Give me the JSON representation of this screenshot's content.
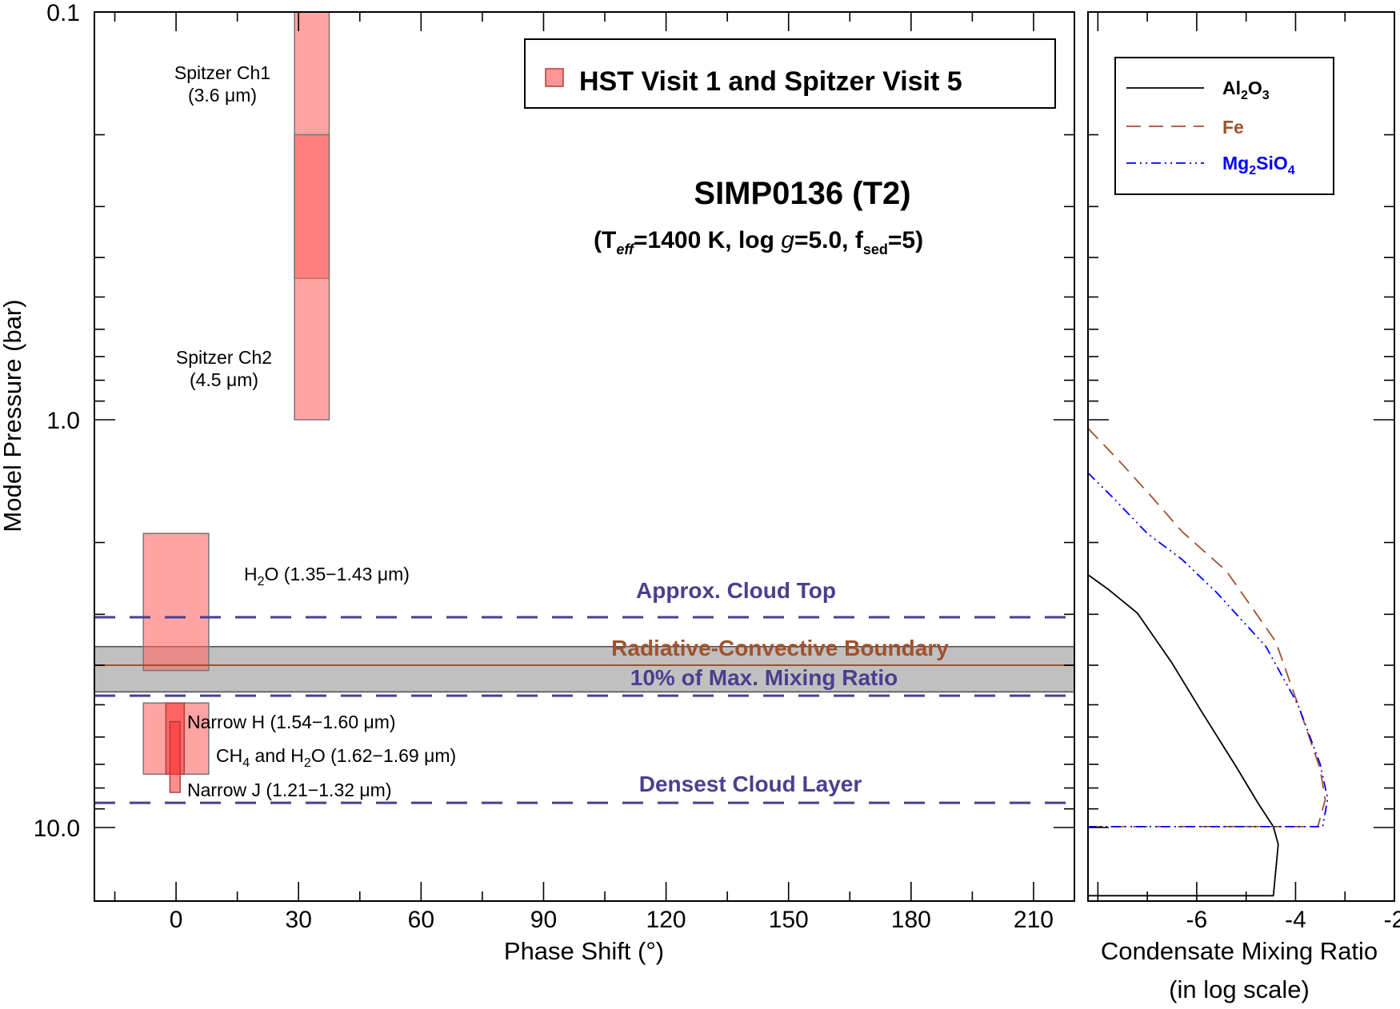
{
  "colors": {
    "band_fill": "#ff6666",
    "band_stroke": "#b23c3c",
    "overlap_fill": "#ff3333",
    "dash_line": "#4a3f8f",
    "rcb_line": "#a0522d",
    "gray_band": "#8c8c8c",
    "al2o3": "#000000",
    "fe": "#a0522d",
    "mg2sio4": "#0000ff"
  },
  "chart_data": [
    {
      "type": "range-bars",
      "title": "SIMP0136 (T2)",
      "subtitle": {
        "open": "(T",
        "teff_sub": "eff",
        "teff_val": "=1400 K, log ",
        "g": "g",
        "g_val": "=5.0, f",
        "fsed_sub": "sed",
        "fsed_val": "=5)"
      },
      "xlabel": "Phase Shift (°)",
      "ylabel": "Model Pressure (bar)",
      "xlim": [
        -20,
        220
      ],
      "ylim": [
        0.1,
        17.5
      ],
      "yscale": "log",
      "xticks": [
        0,
        30,
        60,
        90,
        120,
        150,
        180,
        210
      ],
      "xtick_labels": [
        "0",
        "30",
        "60",
        "90",
        "120",
        "150",
        "180",
        "210"
      ],
      "yticks": [
        0.1,
        1.0,
        10.0
      ],
      "ytick_labels": [
        "0.1",
        "1.0",
        "10.0"
      ],
      "legend": {
        "label": "HST Visit 1 and Spitzer Visit 5",
        "position": "top-right"
      },
      "bands": [
        {
          "name": "Spitzer Ch1",
          "x": [
            29,
            37.5
          ],
          "p": [
            0.1,
            0.45
          ]
        },
        {
          "name": "Spitzer Ch2",
          "x": [
            29,
            37.5
          ],
          "p": [
            0.2,
            1.0
          ]
        },
        {
          "name": "H2O",
          "x": [
            -8,
            8
          ],
          "p": [
            1.9,
            4.12
          ]
        },
        {
          "name": "CH4 and H2O",
          "x": [
            -8,
            8
          ],
          "p": [
            4.95,
            7.4
          ]
        },
        {
          "name": "Narrow H",
          "x": [
            -2.5,
            2
          ],
          "p": [
            4.95,
            7.4
          ]
        },
        {
          "name": "Narrow J",
          "x": [
            -1.5,
            1
          ],
          "p": [
            5.5,
            8.2
          ]
        }
      ],
      "band_labels": [
        {
          "text": "Spitzer Ch1",
          "line2": "(3.6 μm)"
        },
        {
          "text": "Spitzer Ch2",
          "line2": "(4.5 μm)"
        },
        {
          "pre": "H",
          "sub": "2",
          "post": "O (1.35−1.43 μm)"
        },
        {
          "text": "Narrow H (1.54−1.60 μm)"
        },
        {
          "pre": "CH",
          "sub": "4",
          "mid": " and H",
          "sub2": "2",
          "post": "O (1.62−1.69 μm)"
        },
        {
          "text": "Narrow J (1.21−1.32 μm)"
        }
      ],
      "levels": [
        {
          "label": "Approx. Cloud Top",
          "p": 3.05,
          "style": "dashed"
        },
        {
          "label": "Radiative-Convective Boundary",
          "p": 4.0,
          "style": "solid"
        },
        {
          "label": "10% of Max. Mixing Ratio",
          "p": 4.75,
          "style": "dashed"
        },
        {
          "label": "Densest Cloud Layer",
          "p": 8.7,
          "style": "dashed"
        }
      ],
      "gray_band": {
        "p": [
          3.6,
          4.65
        ]
      }
    },
    {
      "type": "line",
      "xlabel": "Condensate Mixing Ratio",
      "xlabel2": "(in log scale)",
      "xlim": [
        -8.2,
        -2
      ],
      "xticks": [
        -6,
        -4,
        -2
      ],
      "xtick_labels": [
        "-6",
        "-4",
        "-2"
      ],
      "ylim": [
        0.1,
        17.5
      ],
      "yscale": "log",
      "legend": {
        "position": "top-left",
        "entries": [
          {
            "pre": "Al",
            "sub": "2",
            "mid": "O",
            "sub2": "3",
            "post": "",
            "color": "#000000",
            "style": "solid"
          },
          {
            "pre": "Fe",
            "sub": "",
            "mid": "",
            "sub2": "",
            "post": "",
            "color": "#a0522d",
            "style": "dashed"
          },
          {
            "pre": "Mg",
            "sub": "2",
            "mid": "SiO",
            "sub2": "4",
            "post": "",
            "color": "#0000ff",
            "style": "dashdotdot"
          }
        ]
      },
      "series": [
        {
          "name": "Al2O3",
          "x": [
            -8.2,
            -7.8,
            -7.2,
            -6.5,
            -5.9,
            -5.2,
            -4.75,
            -4.45,
            -4.35,
            -4.45,
            -8.2
          ],
          "p": [
            2.4,
            2.6,
            2.98,
            3.95,
            5.2,
            7.1,
            8.75,
            9.95,
            11.0,
            14.7,
            14.7
          ]
        },
        {
          "name": "Fe",
          "x": [
            -8.2,
            -7.6,
            -6.9,
            -6.3,
            -5.4,
            -4.4,
            -3.9,
            -3.5,
            -3.4,
            -3.55,
            -8.2
          ],
          "p": [
            1.05,
            1.25,
            1.55,
            1.88,
            2.35,
            3.5,
            5.2,
            7.2,
            8.55,
            9.95,
            9.95
          ]
        },
        {
          "name": "Mg2SiO4",
          "x": [
            -8.2,
            -7.7,
            -7.0,
            -6.3,
            -5.6,
            -4.6,
            -3.95,
            -3.5,
            -3.35,
            -3.45,
            -8.2
          ],
          "p": [
            1.35,
            1.55,
            1.9,
            2.2,
            2.65,
            3.6,
            5.0,
            7.0,
            8.5,
            9.95,
            9.95
          ]
        }
      ]
    }
  ]
}
